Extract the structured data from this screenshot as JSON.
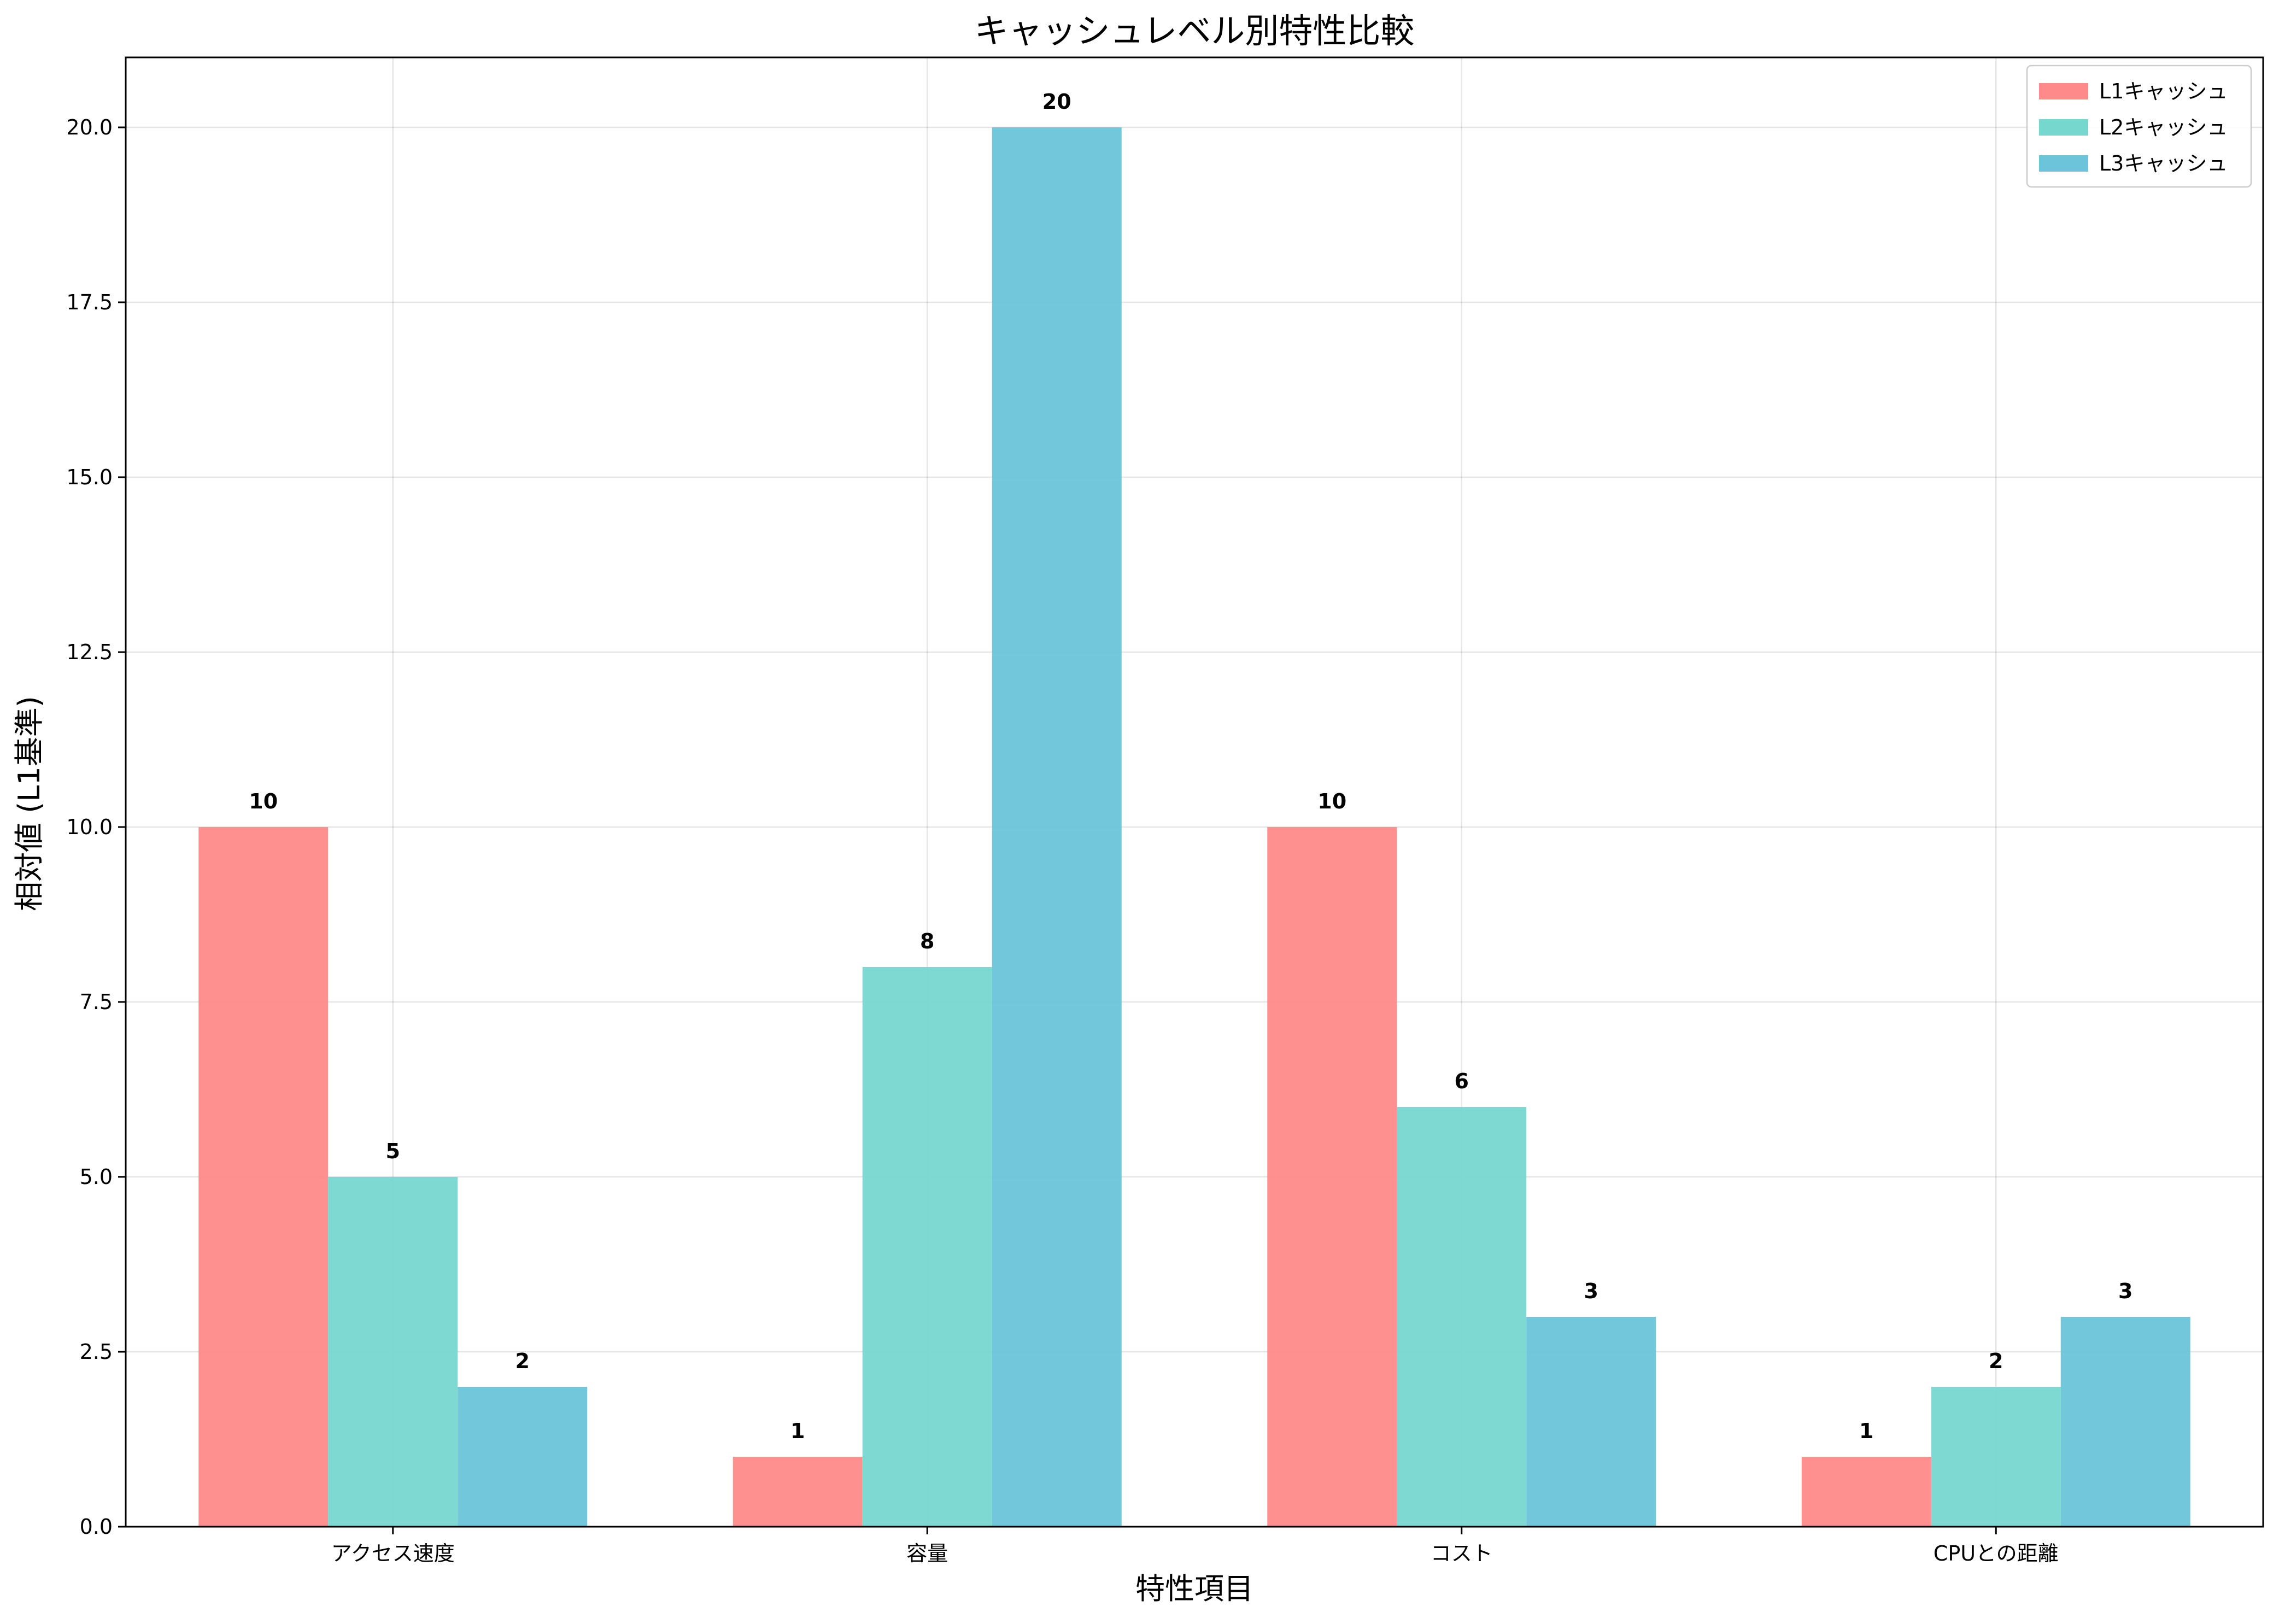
{
  "chart_data": {
    "type": "bar",
    "title": "キャッシュレベル別特性比較",
    "xlabel": "特性項目",
    "ylabel": "相対値 (L1基準)",
    "categories": [
      "アクセス速度",
      "容量",
      "コスト",
      "CPUとの距離"
    ],
    "series": [
      {
        "name": "L1キャッシュ",
        "values": [
          10,
          1,
          10,
          1
        ],
        "color": "#FF8A8A"
      },
      {
        "name": "L2キャッシュ",
        "values": [
          5,
          8,
          6,
          2
        ],
        "color": "#76D7CF"
      },
      {
        "name": "L3キャッシュ",
        "values": [
          2,
          20,
          3,
          3
        ],
        "color": "#6BC4D9"
      }
    ],
    "ylim": [
      0,
      21
    ],
    "yticks": [
      "0.0",
      "2.5",
      "5.0",
      "7.5",
      "10.0",
      "12.5",
      "15.0",
      "17.5",
      "20.0"
    ],
    "grid": true,
    "legend_position": "top-right"
  }
}
